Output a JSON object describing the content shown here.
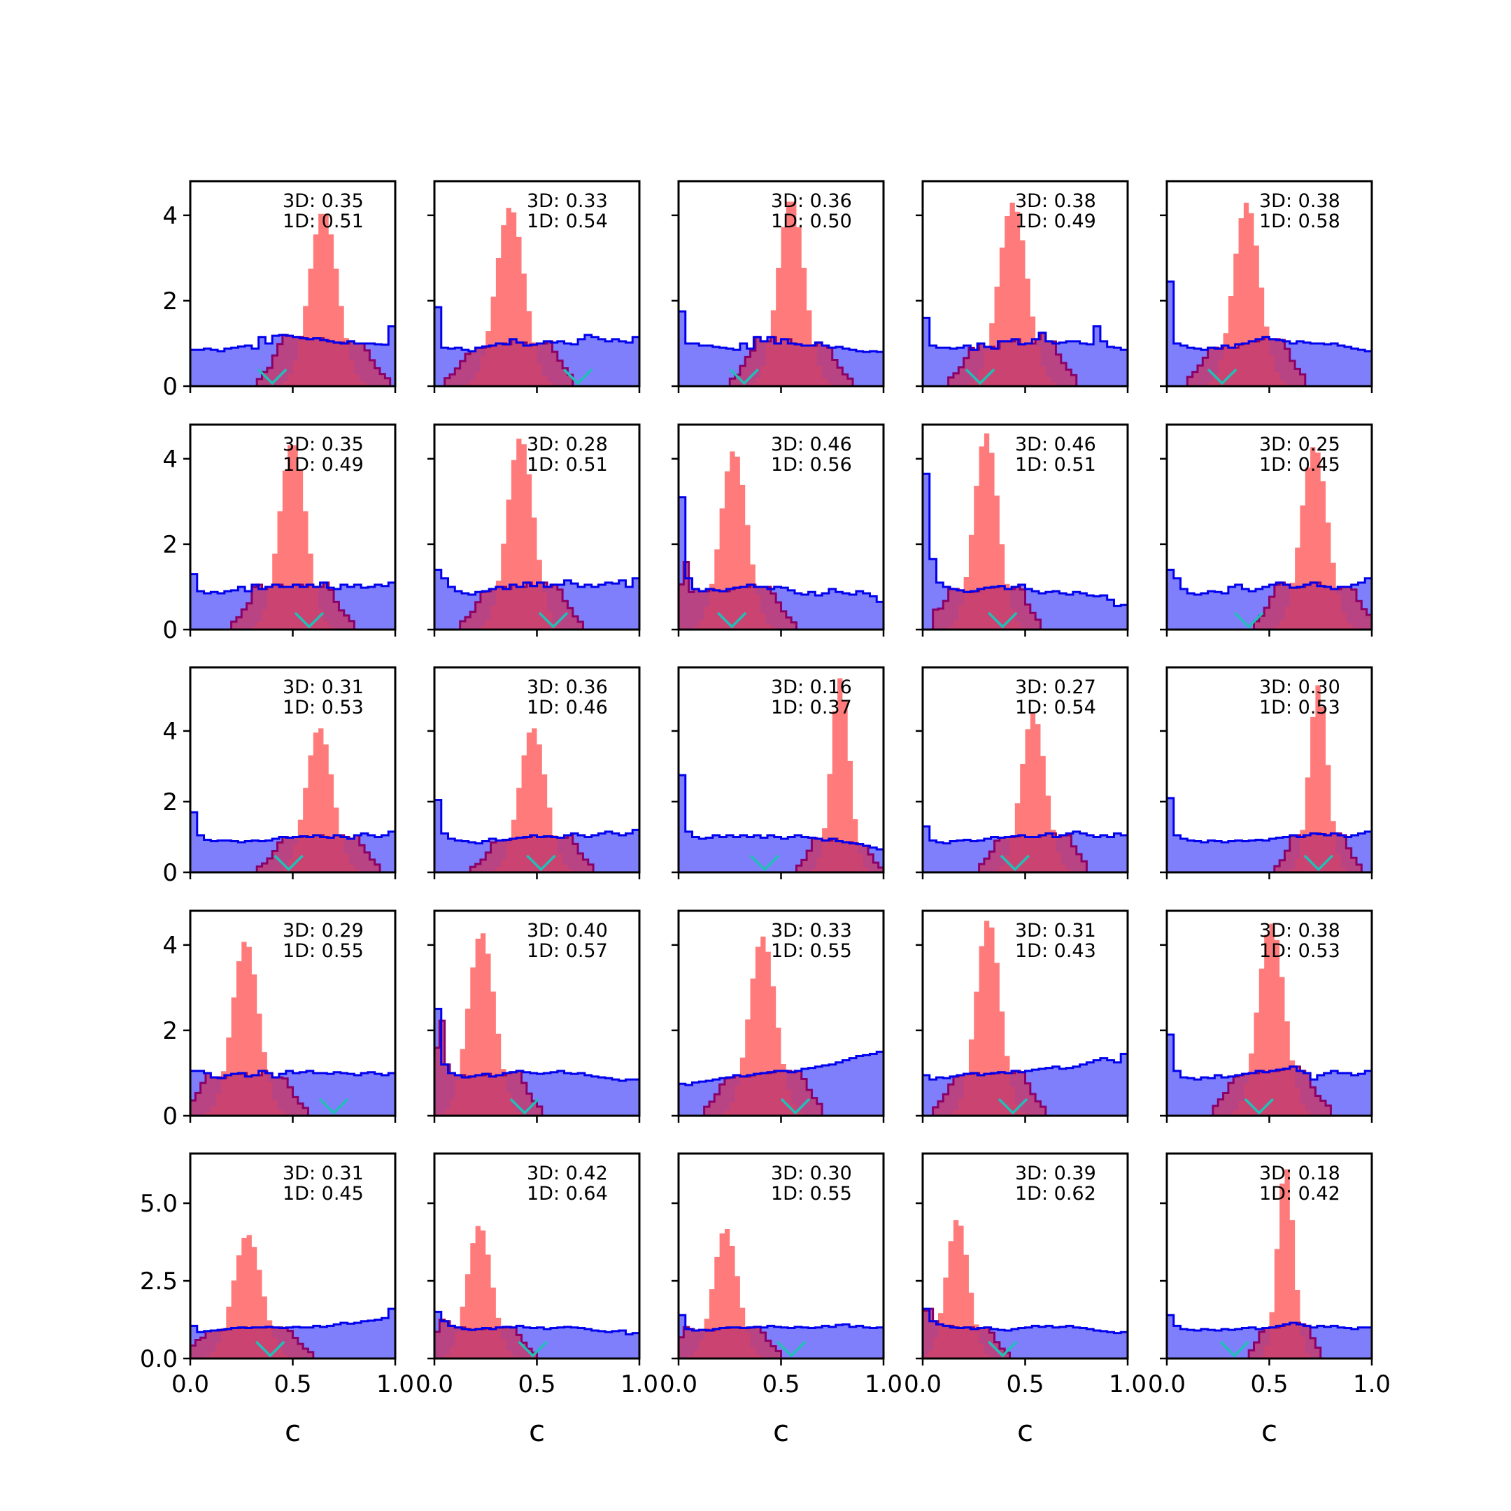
{
  "colors": {
    "blue_fill": "#7f7ffb",
    "blue_line": "#0000ee",
    "red_fill": "#ff7b7b",
    "overlap_fill": "#c23a6e",
    "overlap_line": "#8b0066",
    "marker": "#20c0b8",
    "axes": "#000000"
  },
  "chart_data": {
    "type": "histogram-grid",
    "rows": 5,
    "cols": 5,
    "xlabel": "c",
    "xlim": [
      0,
      1
    ],
    "xticks": [
      0.0,
      0.5,
      1.0
    ],
    "xtick_labels": [
      "0.0",
      "0.5",
      "1.0"
    ],
    "row_ylim": [
      [
        0,
        4.8
      ],
      [
        0,
        4.8
      ],
      [
        0,
        5.8
      ],
      [
        0,
        4.8
      ],
      [
        0,
        6.6
      ]
    ],
    "row_yticks": [
      [
        0,
        2,
        4
      ],
      [
        0,
        2,
        4
      ],
      [
        0,
        2,
        4
      ],
      [
        0,
        2,
        4
      ],
      [
        0,
        2.5,
        5.0
      ]
    ],
    "row_ytick_labels": [
      [
        "0",
        "2",
        "4"
      ],
      [
        "0",
        "2",
        "4"
      ],
      [
        "0",
        "2",
        "4"
      ],
      [
        "0",
        "2",
        "4"
      ],
      [
        "0.0",
        "2.5",
        "5.0"
      ]
    ],
    "series": [
      {
        "name": "3D",
        "kind": "prior",
        "color": "#7f7ffb"
      },
      {
        "name": "1D",
        "kind": "posterior",
        "color": "#ff7b7b"
      }
    ],
    "panels": [
      {
        "label3d": "3D: 0.35",
        "label1d": "1D: 0.51",
        "peak_center": 0.65,
        "peak_height": 4.1,
        "peak_width": 0.07,
        "marker": 0.4,
        "prior": [
          0.85,
          0.85,
          0.88,
          0.85,
          0.82,
          0.88,
          0.9,
          0.93,
          0.95,
          0.88,
          1.15,
          1.0,
          1.18,
          1.2,
          1.18,
          1.15,
          1.12,
          1.1,
          1.12,
          1.08,
          1.05,
          1.02,
          1.0,
          1.05,
          1.0,
          1.0,
          1.0,
          0.98,
          0.97,
          1.4
        ]
      },
      {
        "label3d": "3D: 0.33",
        "label1d": "1D: 0.54",
        "peak_center": 0.37,
        "peak_height": 4.2,
        "peak_width": 0.07,
        "marker": 0.7,
        "prior": [
          1.85,
          0.9,
          0.88,
          0.9,
          0.85,
          0.82,
          0.9,
          0.93,
          0.95,
          1.0,
          0.98,
          1.1,
          1.02,
          0.95,
          0.97,
          1.0,
          1.05,
          1.02,
          1.05,
          1.0,
          0.98,
          1.1,
          1.2,
          1.15,
          1.1,
          1.05,
          1.1,
          1.05,
          1.02,
          1.15
        ]
      },
      {
        "label3d": "3D: 0.36",
        "label1d": "1D: 0.50",
        "peak_center": 0.55,
        "peak_height": 4.4,
        "peak_width": 0.065,
        "marker": 0.32,
        "prior": [
          1.75,
          1.0,
          1.0,
          0.95,
          0.95,
          0.92,
          0.9,
          0.88,
          0.85,
          1.0,
          0.88,
          1.15,
          1.05,
          1.15,
          1.0,
          1.1,
          1.0,
          0.98,
          0.95,
          0.95,
          1.02,
          0.95,
          0.9,
          0.92,
          0.88,
          0.85,
          0.82,
          0.8,
          0.82,
          0.8
        ]
      },
      {
        "label3d": "3D: 0.38",
        "label1d": "1D: 0.49",
        "peak_center": 0.44,
        "peak_height": 4.3,
        "peak_width": 0.07,
        "marker": 0.28,
        "prior": [
          1.6,
          0.95,
          0.9,
          0.9,
          0.88,
          0.9,
          0.95,
          0.85,
          1.0,
          0.92,
          0.88,
          1.05,
          1.05,
          1.1,
          0.98,
          1.0,
          1.1,
          1.25,
          1.05,
          1.0,
          1.02,
          1.05,
          1.05,
          1.0,
          0.98,
          1.4,
          1.05,
          0.92,
          0.9,
          0.85
        ]
      },
      {
        "label3d": "3D: 0.38",
        "label1d": "1D: 0.58",
        "peak_center": 0.39,
        "peak_height": 4.3,
        "peak_width": 0.065,
        "marker": 0.27,
        "prior": [
          2.45,
          1.0,
          0.95,
          0.9,
          0.88,
          0.85,
          0.9,
          0.88,
          0.95,
          0.9,
          0.98,
          1.0,
          1.05,
          1.1,
          1.15,
          1.1,
          1.08,
          1.05,
          1.0,
          1.05,
          1.02,
          1.0,
          1.0,
          0.98,
          1.0,
          0.95,
          0.92,
          0.88,
          0.85,
          0.82
        ]
      },
      {
        "label3d": "3D: 0.35",
        "label1d": "1D: 0.49",
        "peak_center": 0.5,
        "peak_height": 4.4,
        "peak_width": 0.065,
        "marker": 0.58,
        "prior": [
          1.3,
          0.9,
          0.85,
          0.88,
          0.85,
          0.9,
          0.92,
          1.0,
          0.9,
          1.05,
          0.95,
          1.0,
          1.05,
          1.0,
          1.0,
          1.05,
          1.0,
          1.05,
          1.0,
          1.1,
          0.98,
          0.95,
          1.05,
          1.0,
          1.05,
          0.98,
          1.0,
          1.05,
          1.02,
          1.1
        ]
      },
      {
        "label3d": "3D: 0.28",
        "label1d": "1D: 0.51",
        "peak_center": 0.42,
        "peak_height": 4.5,
        "peak_width": 0.065,
        "marker": 0.58,
        "prior": [
          1.4,
          1.2,
          1.0,
          0.9,
          0.85,
          0.82,
          0.88,
          0.9,
          0.95,
          1.0,
          0.95,
          1.05,
          1.0,
          1.1,
          1.02,
          1.1,
          1.0,
          1.05,
          1.05,
          1.15,
          1.08,
          1.0,
          1.05,
          1.0,
          1.05,
          1.1,
          1.08,
          1.15,
          1.0,
          1.2
        ]
      },
      {
        "label3d": "3D: 0.46",
        "label1d": "1D: 0.56",
        "peak_center": 0.27,
        "peak_height": 4.2,
        "peak_width": 0.065,
        "marker": 0.26,
        "prior": [
          3.1,
          1.2,
          0.95,
          0.9,
          0.95,
          0.92,
          0.9,
          0.95,
          0.98,
          1.0,
          1.05,
          1.0,
          1.0,
          0.95,
          1.0,
          0.98,
          0.92,
          0.85,
          0.82,
          0.88,
          0.8,
          0.85,
          0.95,
          0.88,
          0.85,
          0.82,
          0.9,
          0.85,
          0.78,
          0.65
        ]
      },
      {
        "label3d": "3D: 0.46",
        "label1d": "1D: 0.51",
        "peak_center": 0.31,
        "peak_height": 4.6,
        "peak_width": 0.06,
        "marker": 0.39,
        "prior": [
          3.65,
          1.65,
          1.1,
          1.0,
          0.95,
          0.92,
          0.88,
          0.9,
          0.95,
          0.98,
          1.0,
          1.02,
          0.95,
          1.0,
          1.05,
          0.95,
          0.9,
          0.85,
          0.88,
          0.9,
          0.85,
          0.82,
          0.88,
          0.85,
          0.8,
          0.78,
          0.8,
          0.7,
          0.55,
          0.58
        ]
      },
      {
        "label3d": "3D: 0.25",
        "label1d": "1D: 0.45",
        "peak_center": 0.72,
        "peak_height": 4.3,
        "peak_width": 0.065,
        "marker": 0.4,
        "prior": [
          1.4,
          1.2,
          0.95,
          0.85,
          0.82,
          0.85,
          0.9,
          0.88,
          0.85,
          1.0,
          1.05,
          0.95,
          0.9,
          0.95,
          1.0,
          1.05,
          1.1,
          1.05,
          0.98,
          1.0,
          1.05,
          1.1,
          1.02,
          1.0,
          0.95,
          1.0,
          1.0,
          1.05,
          1.1,
          1.2
        ]
      },
      {
        "label3d": "3D: 0.31",
        "label1d": "1D: 0.53",
        "peak_center": 0.63,
        "peak_height": 4.1,
        "peak_width": 0.065,
        "marker": 0.48,
        "prior": [
          1.7,
          1.05,
          0.92,
          0.88,
          0.9,
          0.9,
          0.88,
          0.85,
          0.88,
          0.9,
          0.88,
          0.9,
          0.95,
          1.0,
          0.98,
          1.0,
          1.02,
          1.0,
          1.05,
          1.0,
          0.98,
          1.05,
          1.0,
          0.95,
          1.05,
          1.1,
          1.05,
          1.0,
          1.05,
          1.15
        ]
      },
      {
        "label3d": "3D: 0.36",
        "label1d": "1D: 0.46",
        "peak_center": 0.48,
        "peak_height": 4.1,
        "peak_width": 0.065,
        "marker": 0.52,
        "prior": [
          2.05,
          1.1,
          0.95,
          0.9,
          0.88,
          0.85,
          0.82,
          0.88,
          0.95,
          0.9,
          0.92,
          0.95,
          0.98,
          1.0,
          1.05,
          1.0,
          1.02,
          1.0,
          0.98,
          1.05,
          1.1,
          1.05,
          1.0,
          1.05,
          1.1,
          1.15,
          1.1,
          1.05,
          1.1,
          1.2
        ]
      },
      {
        "label3d": "3D: 0.16",
        "label1d": "1D: 0.37",
        "peak_center": 0.79,
        "peak_height": 5.5,
        "peak_width": 0.045,
        "marker": 0.42,
        "prior": [
          2.75,
          1.15,
          1.0,
          0.95,
          0.98,
          1.05,
          1.0,
          1.05,
          1.0,
          1.05,
          1.0,
          1.05,
          0.98,
          1.05,
          1.0,
          0.95,
          1.0,
          1.05,
          1.0,
          0.98,
          0.95,
          0.9,
          0.95,
          0.88,
          0.85,
          0.82,
          0.8,
          0.75,
          0.7,
          0.65
        ]
      },
      {
        "label3d": "3D: 0.27",
        "label1d": "1D: 0.54",
        "peak_center": 0.54,
        "peak_height": 4.5,
        "peak_width": 0.06,
        "marker": 0.45,
        "prior": [
          1.3,
          0.9,
          0.85,
          0.82,
          0.88,
          0.9,
          0.92,
          0.88,
          0.9,
          0.95,
          1.0,
          0.98,
          1.0,
          1.02,
          1.05,
          1.0,
          1.0,
          1.05,
          1.1,
          1.0,
          1.05,
          1.1,
          1.15,
          1.1,
          1.05,
          1.0,
          1.05,
          1.0,
          1.1,
          1.05
        ]
      },
      {
        "label3d": "3D: 0.30",
        "label1d": "1D: 0.53",
        "peak_center": 0.74,
        "peak_height": 5.3,
        "peak_width": 0.045,
        "marker": 0.74,
        "prior": [
          2.1,
          1.05,
          0.95,
          0.9,
          0.88,
          0.85,
          0.9,
          0.88,
          0.85,
          0.88,
          0.9,
          0.88,
          0.9,
          0.92,
          0.9,
          0.95,
          0.98,
          1.0,
          1.05,
          1.0,
          1.05,
          1.1,
          1.08,
          1.05,
          1.1,
          1.05,
          1.0,
          1.05,
          1.1,
          1.15
        ]
      },
      {
        "label3d": "3D: 0.29",
        "label1d": "1D: 0.55",
        "peak_center": 0.27,
        "peak_height": 4.1,
        "peak_width": 0.065,
        "marker": 0.7,
        "prior": [
          1.05,
          1.05,
          1.0,
          0.9,
          0.88,
          0.95,
          0.98,
          1.0,
          0.92,
          0.95,
          1.05,
          1.0,
          0.9,
          0.98,
          1.05,
          1.0,
          1.02,
          1.05,
          1.0,
          1.0,
          0.98,
          1.02,
          1.0,
          0.98,
          0.95,
          1.0,
          1.02,
          0.98,
          0.95,
          1.0
        ]
      },
      {
        "label3d": "3D: 0.40",
        "label1d": "1D: 0.57",
        "peak_center": 0.23,
        "peak_height": 4.3,
        "peak_width": 0.065,
        "marker": 0.44,
        "prior": [
          2.5,
          1.2,
          1.0,
          0.95,
          0.9,
          0.92,
          0.95,
          0.98,
          0.92,
          0.95,
          1.0,
          1.02,
          1.05,
          1.02,
          1.0,
          0.98,
          1.0,
          1.02,
          1.05,
          1.0,
          0.98,
          1.0,
          0.95,
          0.92,
          0.9,
          0.88,
          0.85,
          0.82,
          0.85,
          0.85
        ]
      },
      {
        "label3d": "3D: 0.33",
        "label1d": "1D: 0.55",
        "peak_center": 0.41,
        "peak_height": 4.2,
        "peak_width": 0.065,
        "marker": 0.57,
        "prior": [
          0.75,
          0.72,
          0.78,
          0.8,
          0.82,
          0.85,
          0.88,
          0.9,
          0.95,
          0.92,
          0.95,
          0.98,
          1.0,
          1.02,
          1.05,
          1.05,
          1.02,
          1.05,
          1.1,
          1.12,
          1.15,
          1.18,
          1.2,
          1.25,
          1.3,
          1.35,
          1.4,
          1.42,
          1.45,
          1.5
        ]
      },
      {
        "label3d": "3D: 0.31",
        "label1d": "1D: 0.43",
        "peak_center": 0.32,
        "peak_height": 4.6,
        "peak_width": 0.06,
        "marker": 0.44,
        "prior": [
          0.95,
          0.85,
          0.9,
          0.88,
          0.92,
          0.95,
          0.98,
          1.0,
          0.95,
          0.98,
          1.0,
          1.02,
          1.0,
          1.05,
          1.02,
          1.05,
          1.08,
          1.1,
          1.12,
          1.15,
          1.1,
          1.12,
          1.15,
          1.2,
          1.25,
          1.3,
          1.35,
          1.3,
          1.25,
          1.45
        ]
      },
      {
        "label3d": "3D: 0.38",
        "label1d": "1D: 0.53",
        "peak_center": 0.51,
        "peak_height": 4.5,
        "peak_width": 0.065,
        "marker": 0.45,
        "prior": [
          1.9,
          1.05,
          0.9,
          0.88,
          0.85,
          0.9,
          0.88,
          0.95,
          0.9,
          0.92,
          0.95,
          0.98,
          1.0,
          1.05,
          1.02,
          1.05,
          1.08,
          1.1,
          1.15,
          1.05,
          1.0,
          0.85,
          0.95,
          1.0,
          1.05,
          1.0,
          1.0,
          0.95,
          0.98,
          1.05
        ]
      },
      {
        "label3d": "3D: 0.31",
        "label1d": "1D: 0.45",
        "peak_center": 0.28,
        "peak_height": 4.0,
        "peak_width": 0.07,
        "marker": 0.39,
        "prior": [
          1.05,
          0.85,
          0.88,
          0.9,
          0.92,
          0.95,
          0.98,
          1.0,
          0.98,
          1.0,
          1.0,
          1.02,
          1.0,
          0.98,
          1.0,
          1.02,
          1.0,
          1.0,
          1.05,
          1.02,
          1.05,
          1.1,
          1.15,
          1.12,
          1.15,
          1.2,
          1.22,
          1.25,
          1.3,
          1.6
        ]
      },
      {
        "label3d": "3D: 0.42",
        "label1d": "1D: 0.64",
        "peak_center": 0.22,
        "peak_height": 4.3,
        "peak_width": 0.06,
        "marker": 0.48,
        "prior": [
          1.5,
          1.2,
          1.05,
          1.0,
          0.95,
          0.92,
          0.95,
          0.98,
          0.95,
          1.0,
          1.02,
          1.0,
          1.05,
          1.0,
          0.98,
          1.0,
          0.95,
          0.98,
          1.0,
          1.02,
          1.0,
          0.98,
          0.95,
          0.9,
          0.88,
          0.85,
          0.88,
          0.9,
          0.78,
          0.82
        ]
      },
      {
        "label3d": "3D: 0.30",
        "label1d": "1D: 0.55",
        "peak_center": 0.23,
        "peak_height": 4.2,
        "peak_width": 0.06,
        "marker": 0.55,
        "prior": [
          1.4,
          0.95,
          0.9,
          0.92,
          0.9,
          0.95,
          0.98,
          1.0,
          1.0,
          0.98,
          1.0,
          1.02,
          1.0,
          1.05,
          1.02,
          1.0,
          0.98,
          1.02,
          1.0,
          0.98,
          1.0,
          1.05,
          1.02,
          1.08,
          1.1,
          1.02,
          1.05,
          1.0,
          0.98,
          1.0
        ]
      },
      {
        "label3d": "3D: 0.39",
        "label1d": "1D: 0.62",
        "peak_center": 0.17,
        "peak_height": 4.5,
        "peak_width": 0.055,
        "marker": 0.39,
        "prior": [
          1.6,
          1.2,
          1.1,
          1.05,
          1.0,
          0.98,
          1.0,
          0.95,
          0.98,
          1.0,
          0.95,
          0.92,
          0.9,
          0.95,
          0.98,
          1.0,
          1.05,
          1.02,
          1.05,
          1.0,
          1.02,
          1.05,
          1.0,
          0.98,
          0.95,
          0.9,
          0.88,
          0.85,
          0.82,
          0.85
        ]
      },
      {
        "label3d": "3D: 0.18",
        "label1d": "1D: 0.42",
        "peak_center": 0.58,
        "peak_height": 6.2,
        "peak_width": 0.04,
        "marker": 0.33,
        "prior": [
          1.4,
          1.05,
          0.95,
          0.92,
          0.9,
          0.95,
          0.92,
          0.9,
          0.95,
          0.92,
          0.95,
          0.98,
          1.0,
          0.95,
          0.98,
          1.0,
          1.05,
          1.1,
          1.15,
          1.1,
          1.05,
          1.0,
          1.05,
          1.02,
          1.05,
          1.0,
          0.98,
          0.95,
          1.0,
          1.0
        ]
      }
    ]
  }
}
